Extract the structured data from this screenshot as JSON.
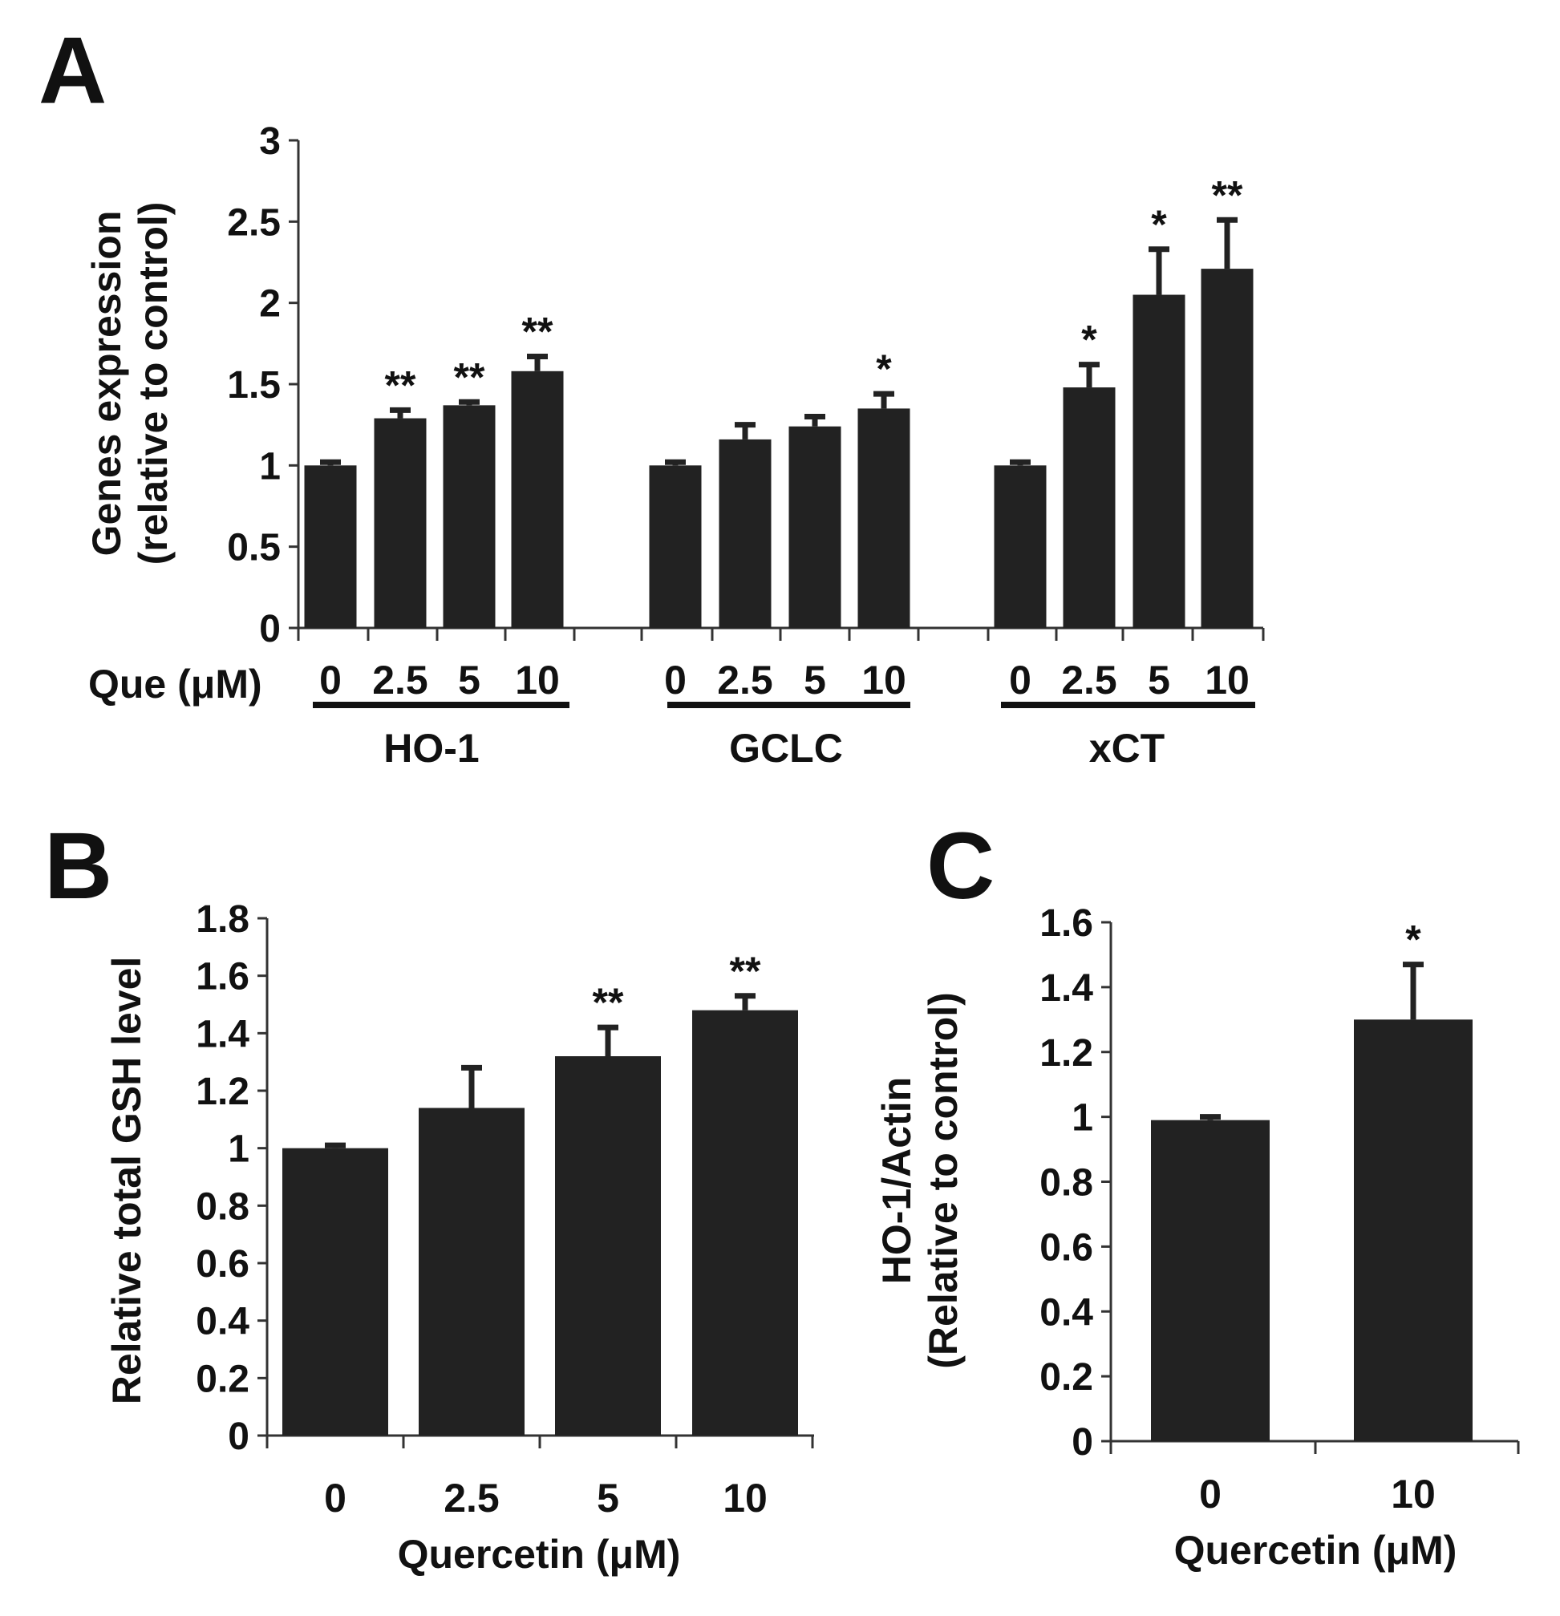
{
  "panels": {
    "A": {
      "letter": "A"
    },
    "B": {
      "letter": "B"
    },
    "C": {
      "letter": "C"
    }
  },
  "chart_data": [
    {
      "id": "A",
      "type": "bar",
      "ylabel_lines": [
        "Genes expression",
        "(relative to control)"
      ],
      "x_prefix": "Que (μM)",
      "ylim": [
        0,
        3
      ],
      "yticks": [
        "0",
        "0.5",
        "1",
        "1.5",
        "2",
        "2.5",
        "3"
      ],
      "ytick_values": [
        0,
        0.5,
        1,
        1.5,
        2,
        2.5,
        3
      ],
      "bar_color": "#222222",
      "groups": [
        {
          "name": "HO-1",
          "categories": [
            "0",
            "2.5",
            "5",
            "10"
          ],
          "values": [
            1.0,
            1.29,
            1.37,
            1.58
          ],
          "errors": [
            0.02,
            0.05,
            0.02,
            0.09
          ],
          "significance": [
            "",
            "**",
            "**",
            "**"
          ]
        },
        {
          "name": "GCLC",
          "categories": [
            "0",
            "2.5",
            "5",
            "10"
          ],
          "values": [
            1.0,
            1.16,
            1.24,
            1.35
          ],
          "errors": [
            0.02,
            0.09,
            0.06,
            0.09
          ],
          "significance": [
            "",
            "",
            "",
            "*"
          ]
        },
        {
          "name": "xCT",
          "categories": [
            "0",
            "2.5",
            "5",
            "10"
          ],
          "values": [
            1.0,
            1.48,
            2.05,
            2.21
          ],
          "errors": [
            0.02,
            0.14,
            0.28,
            0.3
          ],
          "significance": [
            "",
            "*",
            "*",
            "**"
          ]
        }
      ]
    },
    {
      "id": "B",
      "type": "bar",
      "ylabel": "Relative total GSH level",
      "xlabel": "Quercetin (μM)",
      "ylim": [
        0,
        1.8
      ],
      "yticks": [
        "0",
        "0.2",
        "0.4",
        "0.6",
        "0.8",
        "1",
        "1.2",
        "1.4",
        "1.6",
        "1.8"
      ],
      "ytick_values": [
        0,
        0.2,
        0.4,
        0.6,
        0.8,
        1.0,
        1.2,
        1.4,
        1.6,
        1.8
      ],
      "bar_color": "#222222",
      "categories": [
        "0",
        "2.5",
        "5",
        "10"
      ],
      "values": [
        1.0,
        1.14,
        1.32,
        1.48
      ],
      "errors": [
        0.01,
        0.14,
        0.1,
        0.05
      ],
      "significance": [
        "",
        "",
        "**",
        "**"
      ]
    },
    {
      "id": "C",
      "type": "bar",
      "ylabel_lines": [
        "HO-1/Actin",
        "(Relative to control)"
      ],
      "xlabel": "Quercetin (μM)",
      "ylim": [
        0,
        1.6
      ],
      "yticks": [
        "0",
        "0.2",
        "0.4",
        "0.6",
        "0.8",
        "1",
        "1.2",
        "1.4",
        "1.6"
      ],
      "ytick_values": [
        0,
        0.2,
        0.4,
        0.6,
        0.8,
        1.0,
        1.2,
        1.4,
        1.6
      ],
      "bar_color": "#222222",
      "categories": [
        "0",
        "10"
      ],
      "values": [
        0.99,
        1.3
      ],
      "errors": [
        0.01,
        0.17
      ],
      "significance": [
        "",
        "*"
      ]
    }
  ]
}
